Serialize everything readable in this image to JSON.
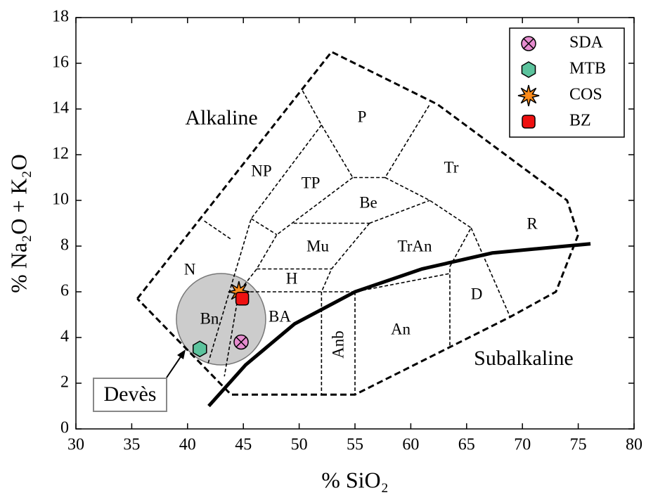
{
  "chart_data": {
    "type": "scatter",
    "xlabel": "% SiO₂",
    "ylabel": "% Na₂O + K₂O",
    "xlim": [
      30,
      80
    ],
    "xticks": [
      30,
      35,
      40,
      45,
      50,
      55,
      60,
      65,
      70,
      75,
      80
    ],
    "ylim": [
      0,
      18
    ],
    "yticks": [
      0,
      2,
      4,
      6,
      8,
      10,
      12,
      14,
      16,
      18
    ],
    "legend": "upper right",
    "series": [
      {
        "name": "SDA",
        "color": "#e68ccf",
        "marker": "circle-x",
        "x": [
          44.8
        ],
        "values": [
          3.8
        ]
      },
      {
        "name": "MTB",
        "color": "#5cc39d",
        "marker": "hexagon",
        "x": [
          41.1
        ],
        "values": [
          3.5
        ]
      },
      {
        "name": "COS",
        "color": "#ff8c1a",
        "marker": "star",
        "x": [
          44.6
        ],
        "values": [
          6.0
        ]
      },
      {
        "name": "BZ",
        "color": "#ee1111",
        "marker": "square",
        "x": [
          44.9
        ],
        "values": [
          5.7
        ]
      }
    ],
    "outline": {
      "x": [
        35.5,
        52.9,
        62.4,
        74.0,
        75.0,
        73.0,
        68.9,
        55.0,
        43.9,
        35.5
      ],
      "y": [
        5.7,
        16.5,
        14.2,
        10.0,
        8.5,
        6.0,
        4.9,
        1.5,
        1.5,
        5.7
      ]
    },
    "boundaries": [
      {
        "x": [
          50.3,
          52.0,
          54.8,
          57.7,
          61.7
        ],
        "y": [
          14.8,
          13.3,
          11.0,
          11.0,
          14.2
        ]
      },
      {
        "x": [
          52.0,
          45.7,
          41.8
        ],
        "y": [
          13.3,
          9.2,
          2.8
        ]
      },
      {
        "x": [
          41.5,
          43.9
        ],
        "y": [
          9.1,
          8.3
        ]
      },
      {
        "x": [
          45.7,
          48.0
        ],
        "y": [
          9.2,
          8.5
        ]
      },
      {
        "x": [
          54.8,
          48.0,
          46.2,
          44.6,
          43.3
        ],
        "y": [
          11.0,
          8.5,
          7.0,
          6.0,
          2.3
        ]
      },
      {
        "x": [
          49.5,
          56.3
        ],
        "y": [
          9.0,
          9.0
        ]
      },
      {
        "x": [
          57.7,
          61.7,
          65.4,
          63.5,
          63.5
        ],
        "y": [
          11.0,
          10.0,
          8.8,
          7.1,
          3.6
        ]
      },
      {
        "x": [
          56.3,
          61.7
        ],
        "y": [
          9.0,
          10.0
        ]
      },
      {
        "x": [
          56.3,
          52.9,
          52.0
        ],
        "y": [
          9.0,
          7.0,
          6.0
        ]
      },
      {
        "x": [
          46.2,
          52.9
        ],
        "y": [
          7.0,
          7.0
        ]
      },
      {
        "x": [
          44.6,
          55.0,
          63.5
        ],
        "y": [
          6.0,
          6.0,
          6.8
        ]
      },
      {
        "x": [
          52.0,
          52.0
        ],
        "y": [
          6.0,
          1.5
        ]
      },
      {
        "x": [
          55.0,
          55.0
        ],
        "y": [
          6.0,
          1.5
        ]
      },
      {
        "x": [
          65.4,
          68.9
        ],
        "y": [
          8.8,
          4.9
        ]
      }
    ],
    "divider": {
      "x": [
        41.9,
        45.2,
        49.6,
        55.0,
        61.0,
        67.3,
        76.1
      ],
      "y": [
        1.0,
        2.8,
        4.6,
        6.0,
        7.0,
        7.7,
        8.1
      ]
    },
    "region": {
      "label": "Devès",
      "x": 43.0,
      "y": 4.8,
      "rx": 4.0,
      "ry": 2.0
    },
    "annotations": [
      "Alkaline",
      "Subalkaline"
    ],
    "field_labels": [
      "P",
      "Tr",
      "NP",
      "TP",
      "Be",
      "R",
      "Mu",
      "TrAn",
      "N",
      "H",
      "Bn",
      "BA",
      "D",
      "An",
      "Anb"
    ]
  }
}
